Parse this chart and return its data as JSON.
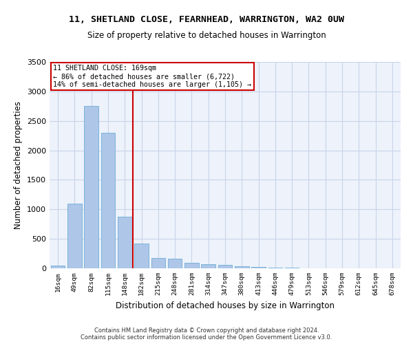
{
  "title1": "11, SHETLAND CLOSE, FEARNHEAD, WARRINGTON, WA2 0UW",
  "title2": "Size of property relative to detached houses in Warrington",
  "xlabel": "Distribution of detached houses by size in Warrington",
  "ylabel": "Number of detached properties",
  "categories": [
    "16sqm",
    "49sqm",
    "82sqm",
    "115sqm",
    "148sqm",
    "182sqm",
    "215sqm",
    "248sqm",
    "281sqm",
    "314sqm",
    "347sqm",
    "380sqm",
    "413sqm",
    "446sqm",
    "479sqm",
    "513sqm",
    "546sqm",
    "579sqm",
    "612sqm",
    "645sqm",
    "678sqm"
  ],
  "values": [
    50,
    1100,
    2750,
    2300,
    880,
    420,
    170,
    160,
    90,
    70,
    55,
    40,
    25,
    12,
    7,
    5,
    3,
    2,
    2,
    1,
    1
  ],
  "bar_color": "#aec6e8",
  "bar_edge_color": "#6baed6",
  "vline_color": "#cc0000",
  "annotation_text": "11 SHETLAND CLOSE: 169sqm\n← 86% of detached houses are smaller (6,722)\n14% of semi-detached houses are larger (1,105) →",
  "annotation_box_color": "#cc0000",
  "ylim": [
    0,
    3500
  ],
  "yticks": [
    0,
    500,
    1000,
    1500,
    2000,
    2500,
    3000,
    3500
  ],
  "footer1": "Contains HM Land Registry data © Crown copyright and database right 2024.",
  "footer2": "Contains public sector information licensed under the Open Government Licence v3.0.",
  "bg_color": "#eef2fb",
  "grid_color": "#c8d4e8"
}
